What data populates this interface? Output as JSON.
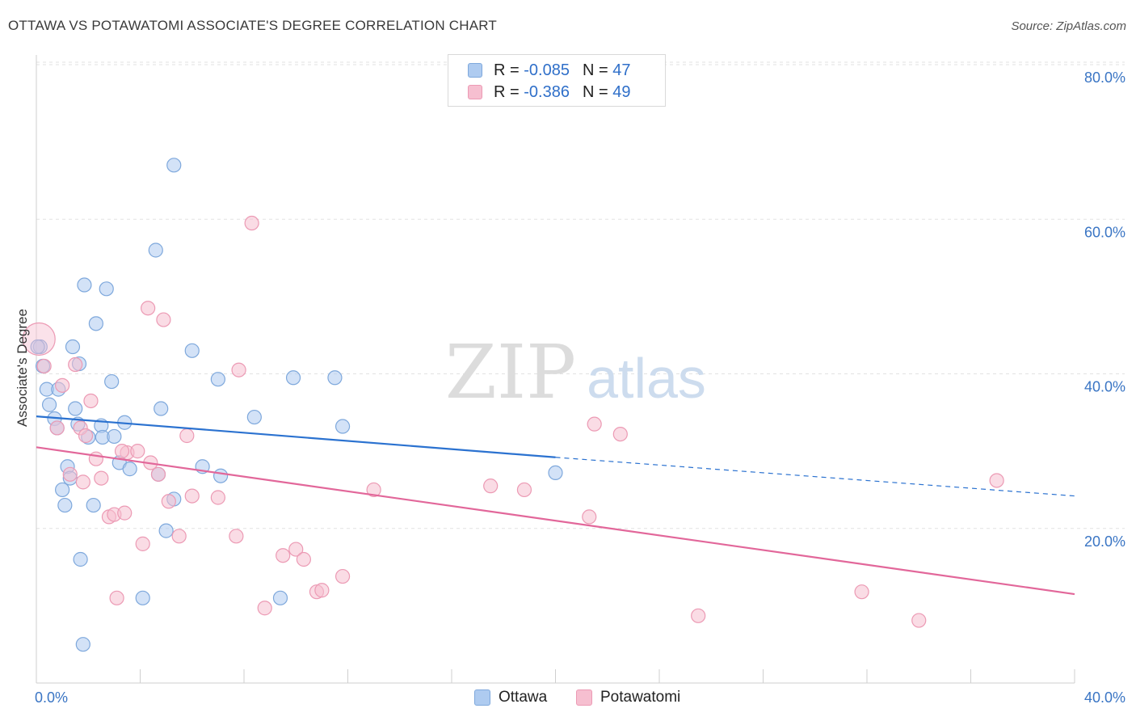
{
  "title": "OTTAWA VS POTAWATOMI ASSOCIATE'S DEGREE CORRELATION CHART",
  "source": "Source: ZipAtlas.com",
  "watermark": {
    "zip": "ZIP",
    "atlas": "atlas"
  },
  "legend": {
    "ottawa": {
      "r_label": "R =",
      "r_value": "-0.085",
      "n_label": "N =",
      "n_value": "47"
    },
    "potawatomi": {
      "r_label": "R =",
      "r_value": "-0.386",
      "n_label": "N =",
      "n_value": "49"
    }
  },
  "colors": {
    "ottawa_fill": "#aecbf0",
    "ottawa_stroke": "#7ea8dc",
    "ottawa_line": "#2b72d0",
    "potawatomi_fill": "#f6bfd0",
    "potawatomi_stroke": "#ec9ab4",
    "potawatomi_line": "#e2679a",
    "axis_label": "#3a75c4",
    "grid": "#e2e2e2"
  },
  "chart_data": {
    "type": "scatter",
    "title": "OTTAWA VS POTAWATOMI ASSOCIATE'S DEGREE CORRELATION CHART",
    "xlabel": "",
    "ylabel": "Associate's Degree",
    "xlim": [
      0,
      40
    ],
    "ylim": [
      0,
      82
    ],
    "x_tick_labels": [
      "0.0%",
      "40.0%"
    ],
    "y_ticks": [
      20,
      40,
      60,
      80
    ],
    "y_tick_labels": [
      "20.0%",
      "40.0%",
      "60.0%",
      "80.0%"
    ],
    "series": [
      {
        "name": "Ottawa",
        "trend": {
          "x0": 0,
          "y0": 34.5,
          "x1": 20,
          "y1": 29.2,
          "dash_to_x": 40,
          "dash_to_y": 24.2
        },
        "points": [
          [
            0.15,
            43.5
          ],
          [
            0.25,
            41
          ],
          [
            0.4,
            38
          ],
          [
            0.5,
            36
          ],
          [
            0.7,
            34.2
          ],
          [
            0.8,
            33
          ],
          [
            0.85,
            38
          ],
          [
            1.0,
            25
          ],
          [
            1.1,
            23
          ],
          [
            1.2,
            28
          ],
          [
            1.3,
            26.5
          ],
          [
            1.4,
            43.5
          ],
          [
            1.5,
            35.5
          ],
          [
            1.6,
            33.5
          ],
          [
            1.7,
            16
          ],
          [
            1.8,
            5
          ],
          [
            1.85,
            51.5
          ],
          [
            2.0,
            31.8
          ],
          [
            2.2,
            23
          ],
          [
            2.3,
            46.5
          ],
          [
            2.5,
            33.3
          ],
          [
            2.55,
            31.8
          ],
          [
            2.7,
            51
          ],
          [
            2.9,
            39
          ],
          [
            3.0,
            31.9
          ],
          [
            3.2,
            28.5
          ],
          [
            3.4,
            33.7
          ],
          [
            3.6,
            27.7
          ],
          [
            4.1,
            11
          ],
          [
            4.6,
            56
          ],
          [
            4.7,
            27
          ],
          [
            4.8,
            35.5
          ],
          [
            5.0,
            19.7
          ],
          [
            5.3,
            67
          ],
          [
            5.3,
            23.8
          ],
          [
            6.0,
            43
          ],
          [
            6.4,
            28
          ],
          [
            7.0,
            39.3
          ],
          [
            7.1,
            26.8
          ],
          [
            8.4,
            34.4
          ],
          [
            9.4,
            11
          ],
          [
            9.9,
            39.5
          ],
          [
            11.5,
            39.5
          ],
          [
            11.8,
            33.2
          ],
          [
            20.0,
            27.2
          ],
          [
            0.05,
            43.5
          ],
          [
            1.65,
            41.3
          ]
        ]
      },
      {
        "name": "Potawatomi",
        "trend": {
          "x0": 0,
          "y0": 30.5,
          "x1": 40,
          "y1": 11.5
        },
        "points": [
          [
            0.1,
            44.5
          ],
          [
            0.3,
            41
          ],
          [
            0.8,
            33
          ],
          [
            1.0,
            38.5
          ],
          [
            1.3,
            27
          ],
          [
            1.5,
            41.2
          ],
          [
            1.7,
            33
          ],
          [
            1.9,
            32
          ],
          [
            2.1,
            36.5
          ],
          [
            2.3,
            29
          ],
          [
            2.5,
            26.5
          ],
          [
            2.8,
            21.5
          ],
          [
            3.0,
            21.8
          ],
          [
            3.1,
            11
          ],
          [
            3.4,
            22
          ],
          [
            3.5,
            29.8
          ],
          [
            3.9,
            30
          ],
          [
            4.1,
            18
          ],
          [
            4.3,
            48.5
          ],
          [
            4.4,
            28.5
          ],
          [
            4.7,
            27
          ],
          [
            4.9,
            47
          ],
          [
            5.1,
            23.5
          ],
          [
            5.5,
            19
          ],
          [
            5.8,
            32
          ],
          [
            6.0,
            24.2
          ],
          [
            7.0,
            24
          ],
          [
            7.7,
            19
          ],
          [
            7.8,
            40.5
          ],
          [
            8.3,
            59.5
          ],
          [
            8.8,
            9.7
          ],
          [
            9.5,
            16.5
          ],
          [
            10.0,
            17.3
          ],
          [
            10.3,
            16
          ],
          [
            10.8,
            11.8
          ],
          [
            11.0,
            12
          ],
          [
            11.8,
            13.8
          ],
          [
            13.0,
            25
          ],
          [
            17.5,
            25.5
          ],
          [
            18.8,
            25
          ],
          [
            21.3,
            21.5
          ],
          [
            21.5,
            33.5
          ],
          [
            22.5,
            32.2
          ],
          [
            25.5,
            8.7
          ],
          [
            31.8,
            11.8
          ],
          [
            34.0,
            8.1
          ],
          [
            37.0,
            26.2
          ],
          [
            1.8,
            26
          ],
          [
            3.3,
            30
          ]
        ]
      }
    ]
  }
}
